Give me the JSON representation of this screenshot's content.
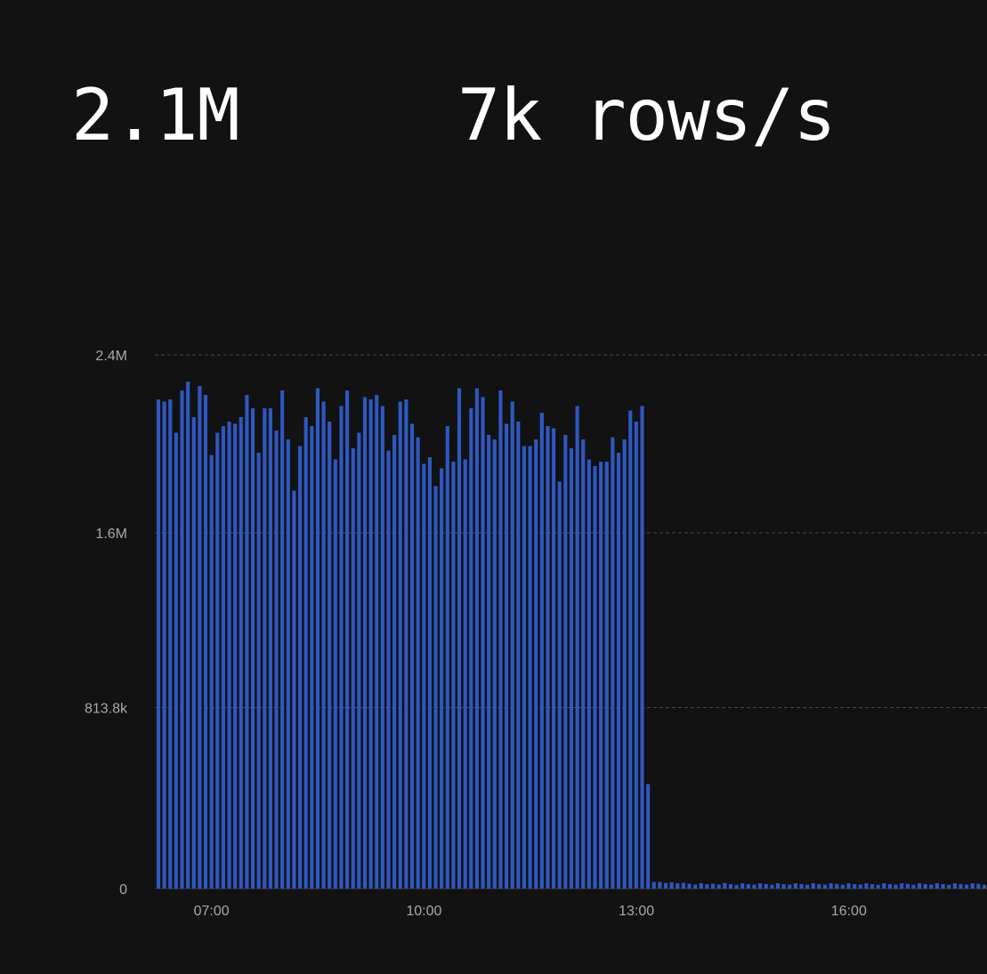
{
  "stats": {
    "total_rows": "2.1M",
    "throughput": "7k rows/s"
  },
  "colors": {
    "background": "#121212",
    "bar": "#2e58c2",
    "text": "#ffffff",
    "axis_text": "#a8a8a8"
  },
  "chart_data": {
    "type": "bar",
    "x_unit": "time of day (hours)",
    "xlim": [
      6.2,
      17.95
    ],
    "ylim": [
      0,
      2400000
    ],
    "y_ticks": [
      {
        "value": 0,
        "label": "0"
      },
      {
        "value": 813800,
        "label": "813.8k"
      },
      {
        "value": 1600000,
        "label": "1.6M"
      },
      {
        "value": 2400000,
        "label": "2.4M"
      }
    ],
    "x_ticks": [
      {
        "value": 7,
        "label": "07:00"
      },
      {
        "value": 10,
        "label": "10:00"
      },
      {
        "value": 13,
        "label": "13:00"
      },
      {
        "value": 16,
        "label": "16:00"
      }
    ],
    "grid": true,
    "bar_start_hour": 6.25,
    "bar_interval_hours": 0.0833,
    "values": [
      2200000,
      2190000,
      2200000,
      2050000,
      2240000,
      2280000,
      2120000,
      2260000,
      2220000,
      1950000,
      2050000,
      2080000,
      2100000,
      2090000,
      2120000,
      2220000,
      2160000,
      1960000,
      2160000,
      2160000,
      2060000,
      2240000,
      2020000,
      1790000,
      1990000,
      2120000,
      2080000,
      2250000,
      2190000,
      2100000,
      1930000,
      2170000,
      2240000,
      1980000,
      2050000,
      2210000,
      2200000,
      2220000,
      2170000,
      1970000,
      2040000,
      2190000,
      2200000,
      2090000,
      2030000,
      1910000,
      1940000,
      1810000,
      1890000,
      2080000,
      1920000,
      2250000,
      1930000,
      2160000,
      2250000,
      2210000,
      2040000,
      2020000,
      2240000,
      2090000,
      2190000,
      2100000,
      1990000,
      1990000,
      2020000,
      2140000,
      2080000,
      2070000,
      1830000,
      2040000,
      1980000,
      2170000,
      2020000,
      1930000,
      1900000,
      1920000,
      1920000,
      2030000,
      1960000,
      2020000,
      2150000,
      2100000,
      2170000,
      470000,
      30000,
      30000,
      25000,
      28000,
      24000,
      26000,
      22000,
      18000,
      24000,
      20000,
      22000,
      18000,
      25000,
      20000,
      17000,
      24000,
      20000,
      18000,
      24000,
      21000,
      17000,
      24000,
      20000,
      18000,
      24000,
      20000,
      17000,
      24000,
      20000,
      18000,
      24000,
      21000,
      17000,
      24000,
      20000,
      18000,
      24000,
      20000,
      17000,
      24000,
      20000,
      18000,
      24000,
      21000,
      17000,
      24000,
      20000,
      18000,
      24000,
      20000,
      17000,
      24000,
      20000,
      18000,
      24000,
      21000,
      17000
    ]
  }
}
